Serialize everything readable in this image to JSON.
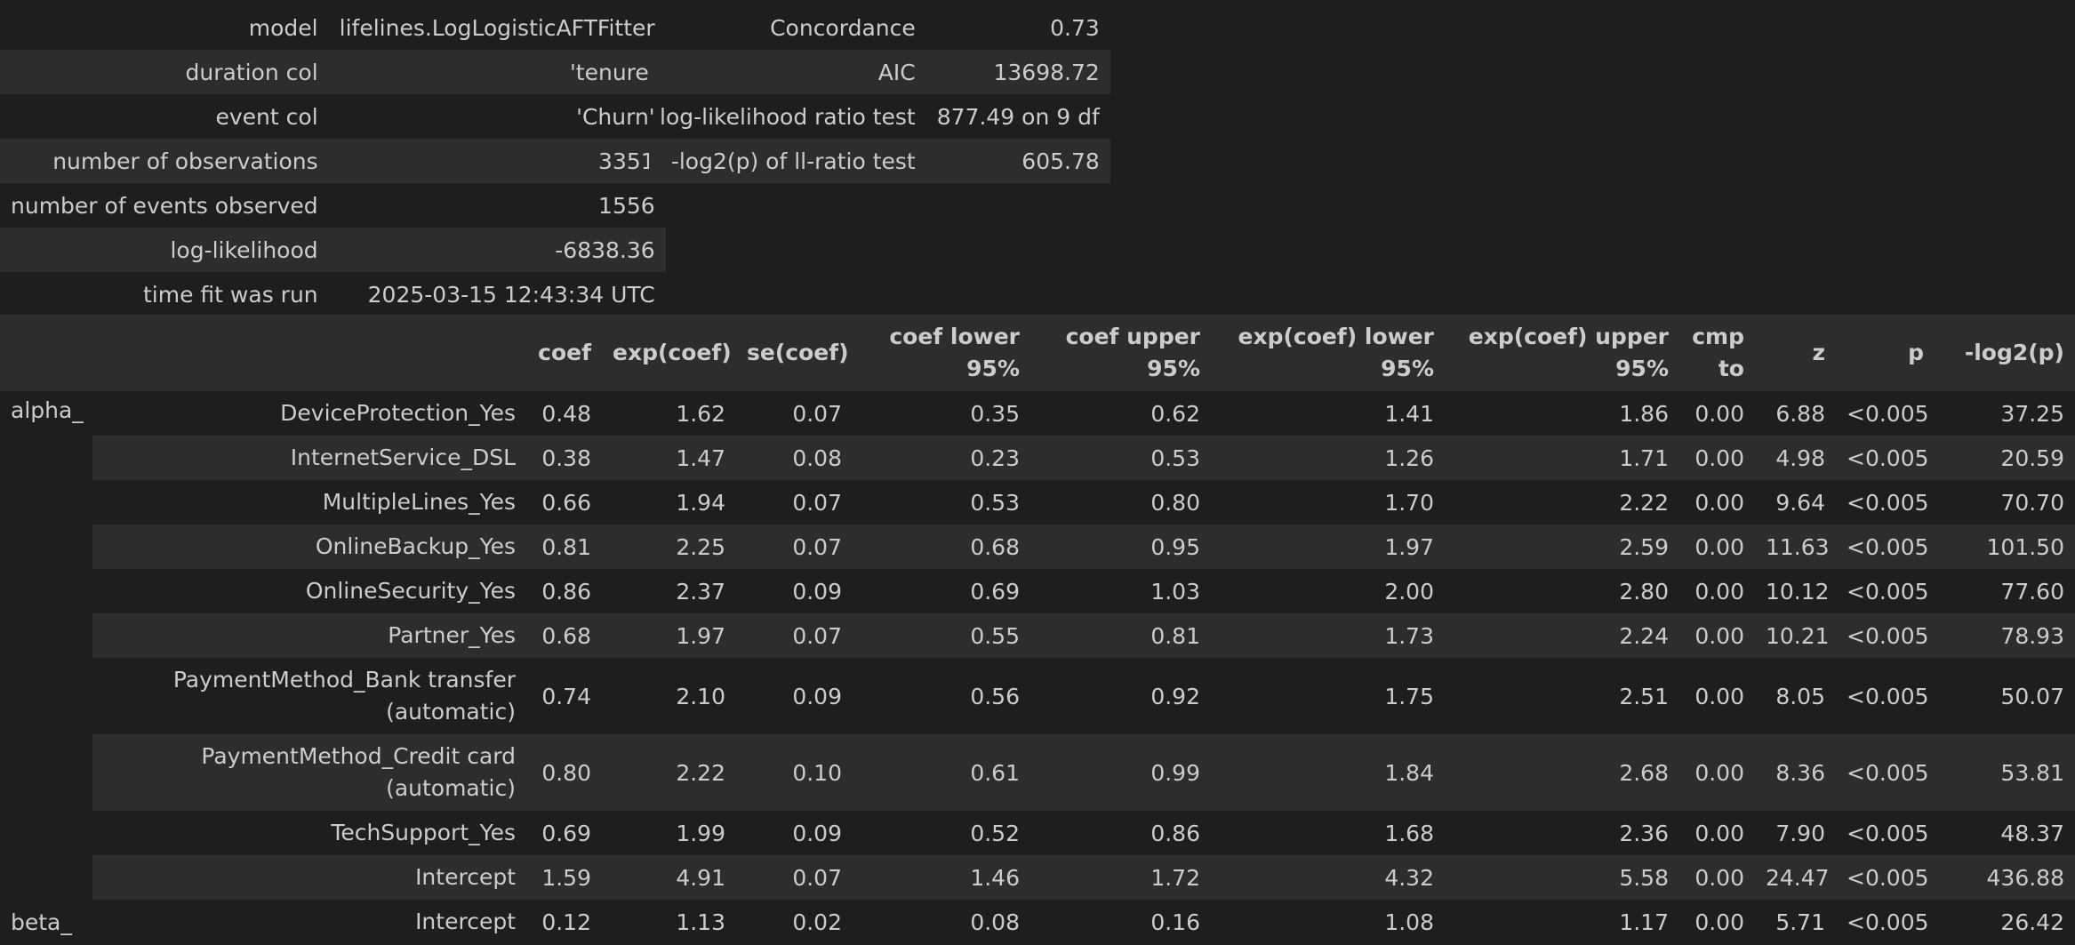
{
  "summary_left": [
    {
      "key": "model",
      "value": "lifelines.LogLogisticAFTFitter"
    },
    {
      "key": "duration col",
      "value": "'tenure'"
    },
    {
      "key": "event col",
      "value": "'Churn'"
    },
    {
      "key": "number of observations",
      "value": "3351"
    },
    {
      "key": "number of events observed",
      "value": "1556"
    },
    {
      "key": "log-likelihood",
      "value": "-6838.36"
    },
    {
      "key": "time fit was run",
      "value": "2025-03-15 12:43:34 UTC"
    }
  ],
  "summary_right": [
    {
      "key": "Concordance",
      "value": "0.73"
    },
    {
      "key": "AIC",
      "value": "13698.72"
    },
    {
      "key": "log-likelihood ratio test",
      "value": "877.49 on 9 df"
    },
    {
      "key": "-log2(p) of ll-ratio test",
      "value": "605.78"
    }
  ],
  "coef_headers": [
    "coef",
    "exp(coef)",
    "se(coef)",
    "coef lower 95%",
    "coef upper 95%",
    "exp(coef) lower 95%",
    "exp(coef) upper 95%",
    "cmp to",
    "z",
    "p",
    "-log2(p)"
  ],
  "groups": [
    {
      "name": "alpha_",
      "rows": [
        {
          "param": "DeviceProtection_Yes",
          "values": [
            "0.48",
            "1.62",
            "0.07",
            "0.35",
            "0.62",
            "1.41",
            "1.86",
            "0.00",
            "6.88",
            "<0.005",
            "37.25"
          ]
        },
        {
          "param": "InternetService_DSL",
          "values": [
            "0.38",
            "1.47",
            "0.08",
            "0.23",
            "0.53",
            "1.26",
            "1.71",
            "0.00",
            "4.98",
            "<0.005",
            "20.59"
          ]
        },
        {
          "param": "MultipleLines_Yes",
          "values": [
            "0.66",
            "1.94",
            "0.07",
            "0.53",
            "0.80",
            "1.70",
            "2.22",
            "0.00",
            "9.64",
            "<0.005",
            "70.70"
          ]
        },
        {
          "param": "OnlineBackup_Yes",
          "values": [
            "0.81",
            "2.25",
            "0.07",
            "0.68",
            "0.95",
            "1.97",
            "2.59",
            "0.00",
            "11.63",
            "<0.005",
            "101.50"
          ]
        },
        {
          "param": "OnlineSecurity_Yes",
          "values": [
            "0.86",
            "2.37",
            "0.09",
            "0.69",
            "1.03",
            "2.00",
            "2.80",
            "0.00",
            "10.12",
            "<0.005",
            "77.60"
          ]
        },
        {
          "param": "Partner_Yes",
          "values": [
            "0.68",
            "1.97",
            "0.07",
            "0.55",
            "0.81",
            "1.73",
            "2.24",
            "0.00",
            "10.21",
            "<0.005",
            "78.93"
          ]
        },
        {
          "param": "PaymentMethod_Bank transfer (automatic)",
          "values": [
            "0.74",
            "2.10",
            "0.09",
            "0.56",
            "0.92",
            "1.75",
            "2.51",
            "0.00",
            "8.05",
            "<0.005",
            "50.07"
          ]
        },
        {
          "param": "PaymentMethod_Credit card (automatic)",
          "values": [
            "0.80",
            "2.22",
            "0.10",
            "0.61",
            "0.99",
            "1.84",
            "2.68",
            "0.00",
            "8.36",
            "<0.005",
            "53.81"
          ]
        },
        {
          "param": "TechSupport_Yes",
          "values": [
            "0.69",
            "1.99",
            "0.09",
            "0.52",
            "0.86",
            "1.68",
            "2.36",
            "0.00",
            "7.90",
            "<0.005",
            "48.37"
          ]
        },
        {
          "param": "Intercept",
          "values": [
            "1.59",
            "4.91",
            "0.07",
            "1.46",
            "1.72",
            "4.32",
            "5.58",
            "0.00",
            "24.47",
            "<0.005",
            "436.88"
          ]
        }
      ]
    },
    {
      "name": "beta_",
      "rows": [
        {
          "param": "Intercept",
          "values": [
            "0.12",
            "1.13",
            "0.02",
            "0.08",
            "0.16",
            "1.08",
            "1.17",
            "0.00",
            "5.71",
            "<0.005",
            "26.42"
          ]
        }
      ]
    }
  ]
}
